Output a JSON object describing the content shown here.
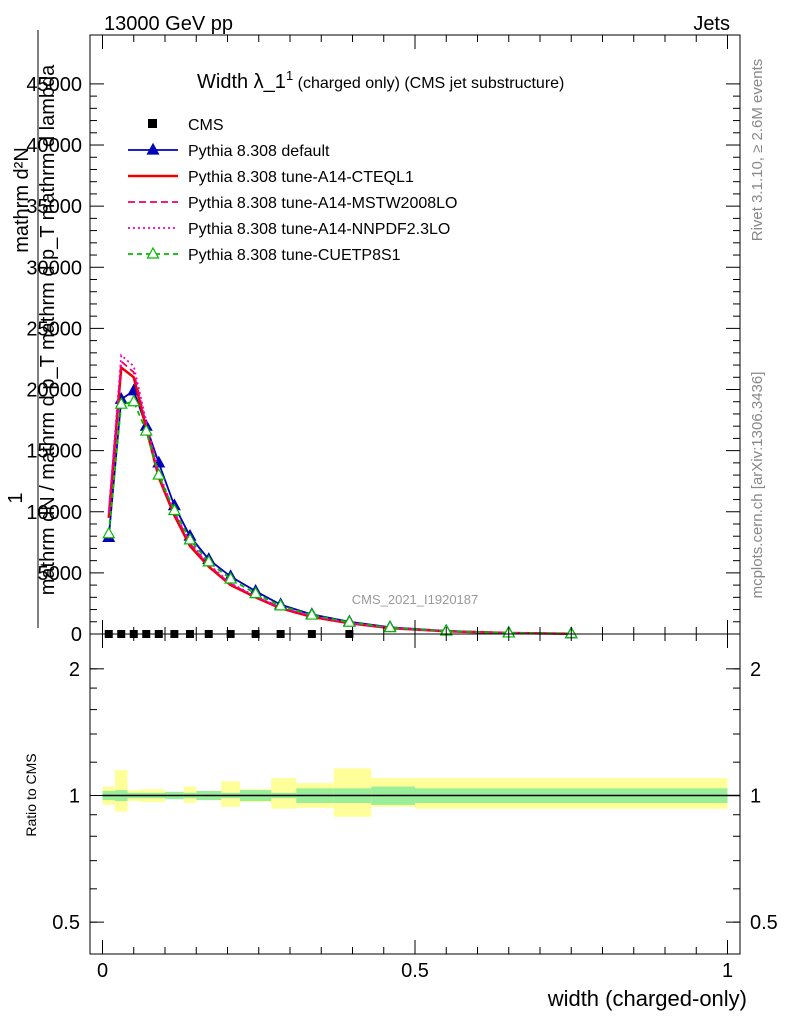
{
  "header": {
    "left": "13000 GeV pp",
    "right": "Jets"
  },
  "side_labels": {
    "rivet": "Rivet 3.1.10, ≥ 2.6M events",
    "mcplots": "mcplots.cern.ch [arXiv:1306.3436]"
  },
  "watermark": "CMS_2021_I1920187",
  "chart_data": [
    {
      "type": "line",
      "title": "Width λ_1",
      "title_sup": "1",
      "title_suffix": " (charged only) (CMS jet substructure)",
      "ylabel_top": "1",
      "ylabel_num": "mathrm d²N",
      "ylabel_den": "mathrm dN / mathrm d p_T mathrm d p_T mathrm d lambda",
      "xlabel": "width (charged-only)",
      "xlim": [
        -0.02,
        1.02
      ],
      "ylim": [
        0,
        49000
      ],
      "y_ticks": [
        "0",
        "5000",
        "10000",
        "15000",
        "20000",
        "25000",
        "30000",
        "35000",
        "40000",
        "45000"
      ],
      "y_tick_values": [
        0,
        5000,
        10000,
        15000,
        20000,
        25000,
        30000,
        35000,
        40000,
        45000
      ],
      "x_ticks": [
        "0",
        "0.5",
        "1"
      ],
      "x_tick_values": [
        0,
        0.5,
        1
      ],
      "legend_position": "top-left",
      "data_series": {
        "name": "CMS",
        "x": [
          0.01,
          0.03,
          0.05,
          0.07,
          0.09,
          0.115,
          0.14,
          0.17,
          0.205,
          0.245,
          0.285,
          0.335,
          0.395
        ],
        "y": [
          0,
          0,
          0,
          0,
          0,
          0,
          0,
          0,
          0,
          0,
          0,
          0,
          0
        ],
        "color": "#000000"
      },
      "bin_edges": [
        0,
        0.02,
        0.04,
        0.06,
        0.08,
        0.1,
        0.13,
        0.15,
        0.19,
        0.22,
        0.27,
        0.31,
        0.37,
        0.43,
        0.5,
        1.0
      ],
      "series": [
        {
          "name": "Pythia 8.308 default",
          "color": "#0000bb",
          "style": "solid-triangle",
          "x": [
            0.01,
            0.03,
            0.05,
            0.07,
            0.09,
            0.115,
            0.14,
            0.17,
            0.205,
            0.245,
            0.285,
            0.335,
            0.395,
            0.46,
            0.55,
            0.65,
            0.75
          ],
          "y": [
            7900,
            19200,
            19900,
            17000,
            14000,
            10500,
            8000,
            6100,
            4700,
            3500,
            2400,
            1600,
            1000,
            550,
            250,
            90,
            30
          ]
        },
        {
          "name": "Pythia 8.308 tune-A14-CTEQL1",
          "color": "#ee0000",
          "style": "solid",
          "x": [
            0.01,
            0.03,
            0.05,
            0.07,
            0.09,
            0.115,
            0.14,
            0.17,
            0.205,
            0.245,
            0.285,
            0.335,
            0.395,
            0.46,
            0.55,
            0.65,
            0.75
          ],
          "y": [
            9500,
            21800,
            21000,
            16800,
            12800,
            9700,
            7200,
            5500,
            4000,
            3000,
            2100,
            1400,
            880,
            480,
            220,
            80,
            25
          ]
        },
        {
          "name": "Pythia 8.308 tune-A14-MSTW2008LO",
          "color": "#ee0066",
          "style": "dashed",
          "x": [
            0.01,
            0.03,
            0.05,
            0.07,
            0.09,
            0.115,
            0.14,
            0.17,
            0.205,
            0.245,
            0.285,
            0.335,
            0.395,
            0.46,
            0.55,
            0.65,
            0.75
          ],
          "y": [
            9800,
            22300,
            21400,
            17100,
            13000,
            9900,
            7400,
            5600,
            4100,
            3050,
            2150,
            1450,
            900,
            490,
            225,
            82,
            26
          ]
        },
        {
          "name": "Pythia 8.308 tune-A14-NNPDF2.3LO",
          "color": "#ee00cc",
          "style": "dotted",
          "x": [
            0.01,
            0.03,
            0.05,
            0.07,
            0.09,
            0.115,
            0.14,
            0.17,
            0.205,
            0.245,
            0.285,
            0.335,
            0.395,
            0.46,
            0.55,
            0.65,
            0.75
          ],
          "y": [
            10000,
            22800,
            21900,
            17400,
            13200,
            10000,
            7500,
            5700,
            4150,
            3100,
            2180,
            1460,
            910,
            495,
            228,
            84,
            27
          ]
        },
        {
          "name": "Pythia 8.308 tune-CUETP8S1",
          "color": "#00bb00",
          "style": "dashed-open-triangle",
          "x": [
            0.01,
            0.03,
            0.05,
            0.07,
            0.09,
            0.115,
            0.14,
            0.17,
            0.205,
            0.245,
            0.285,
            0.335,
            0.395,
            0.46,
            0.55,
            0.65,
            0.75
          ],
          "y": [
            8200,
            18800,
            19000,
            16600,
            13000,
            10100,
            7700,
            5900,
            4500,
            3300,
            2300,
            1550,
            960,
            520,
            240,
            88,
            28
          ]
        }
      ]
    },
    {
      "type": "area",
      "ylabel": "Ratio to CMS",
      "xlabel": "width (charged-only)",
      "xlim": [
        -0.02,
        1.02
      ],
      "ylim": [
        0.42,
        2.42
      ],
      "log_y": true,
      "y_ticks": [
        "0.5",
        "1",
        "2"
      ],
      "y_tick_values": [
        0.5,
        1,
        2
      ],
      "x_ticks": [
        "0",
        "0.5",
        "1"
      ],
      "x_tick_values": [
        0,
        0.5,
        1
      ],
      "bands": {
        "edges": [
          0,
          0.02,
          0.04,
          0.06,
          0.1,
          0.13,
          0.15,
          0.19,
          0.22,
          0.27,
          0.31,
          0.37,
          0.43,
          0.5,
          1.0
        ],
        "inner_lo": [
          0.975,
          0.97,
          0.985,
          0.985,
          0.98,
          0.985,
          0.975,
          0.985,
          0.97,
          0.985,
          0.96,
          0.96,
          0.95,
          0.96
        ],
        "inner_hi": [
          1.025,
          1.03,
          1.015,
          1.015,
          1.02,
          1.015,
          1.025,
          1.015,
          1.03,
          1.015,
          1.04,
          1.04,
          1.05,
          1.04
        ],
        "outer_lo": [
          0.95,
          0.915,
          0.97,
          0.965,
          0.985,
          0.96,
          0.975,
          0.94,
          0.965,
          0.93,
          0.935,
          0.89,
          0.94,
          0.93
        ],
        "outer_hi": [
          1.05,
          1.15,
          1.03,
          1.035,
          1.015,
          1.05,
          1.025,
          1.08,
          1.035,
          1.1,
          1.07,
          1.16,
          1.1,
          1.1
        ],
        "inner_color": "#99ee99",
        "outer_color": "#ffff99"
      }
    }
  ]
}
